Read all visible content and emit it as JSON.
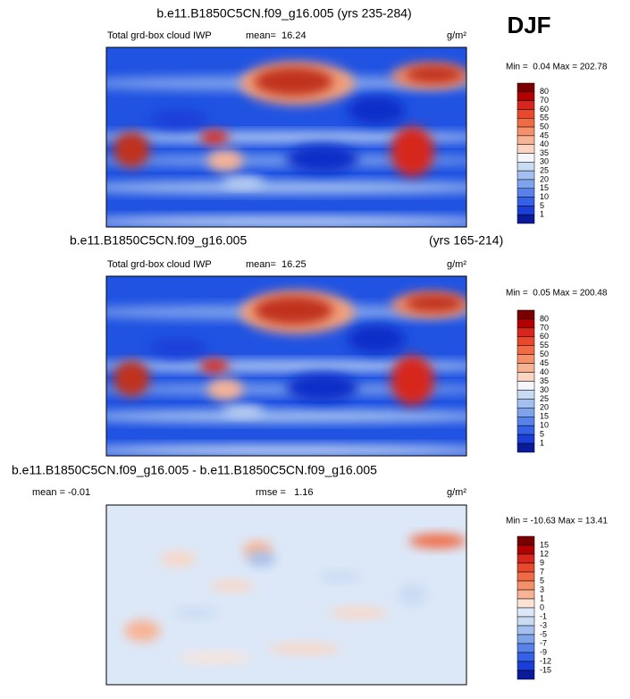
{
  "header": {
    "season": "DJF"
  },
  "panels": [
    {
      "title": "b.e11.B1850C5CN.f09_g16.005 (yrs 235-284)",
      "left_label": "Total grd-box cloud IWP",
      "center_label": "mean=  16.24",
      "units": "g/m²",
      "range": "Min =  0.04 Max = 202.78",
      "colorbar": {
        "labels": [
          "80",
          "70",
          "60",
          "55",
          "50",
          "45",
          "40",
          "35",
          "30",
          "25",
          "20",
          "15",
          "10",
          "5",
          "1"
        ],
        "colors": [
          "#7a0000",
          "#b30000",
          "#d7261e",
          "#e8492d",
          "#f06a45",
          "#f5906a",
          "#f8b394",
          "#fbd5c2",
          "#f4f6fb",
          "#c9daf3",
          "#a3c0ee",
          "#7ea3ea",
          "#5882ea",
          "#3461e6",
          "#1a3fd8",
          "#0a1a9a"
        ]
      }
    },
    {
      "title": "b.e11.B1850C5CN.f09_g16.005",
      "title_right": "(yrs 165-214)",
      "left_label": "Total grd-box cloud IWP",
      "center_label": "mean=  16.25",
      "units": "g/m²",
      "range": "Min =  0.05 Max = 200.48",
      "colorbar": {
        "labels": [
          "80",
          "70",
          "60",
          "55",
          "50",
          "45",
          "40",
          "35",
          "30",
          "25",
          "20",
          "15",
          "10",
          "5",
          "1"
        ],
        "colors": [
          "#7a0000",
          "#b30000",
          "#d7261e",
          "#e8492d",
          "#f06a45",
          "#f5906a",
          "#f8b394",
          "#fbd5c2",
          "#f4f6fb",
          "#c9daf3",
          "#a3c0ee",
          "#7ea3ea",
          "#5882ea",
          "#3461e6",
          "#1a3fd8",
          "#0a1a9a"
        ]
      }
    },
    {
      "title": "b.e11.B1850C5CN.f09_g16.005 - b.e11.B1850C5CN.f09_g16.005",
      "left_label": "mean = -0.01",
      "center_label": "rmse =   1.16",
      "units": "g/m²",
      "range": "Min = -10.63 Max = 13.41",
      "colorbar": {
        "labels": [
          "15",
          "12",
          "9",
          "7",
          "5",
          "3",
          "1",
          "0",
          "-1",
          "-3",
          "-5",
          "-7",
          "-9",
          "-12",
          "-15"
        ],
        "colors": [
          "#7a0000",
          "#b30000",
          "#d7261e",
          "#e8492d",
          "#f06a45",
          "#f5906a",
          "#f8b394",
          "#fbe3d6",
          "#dce8f8",
          "#c9daf3",
          "#a3c0ee",
          "#7ea3ea",
          "#5882ea",
          "#3461e6",
          "#1a3fd8",
          "#0a1a9a"
        ]
      }
    }
  ]
}
